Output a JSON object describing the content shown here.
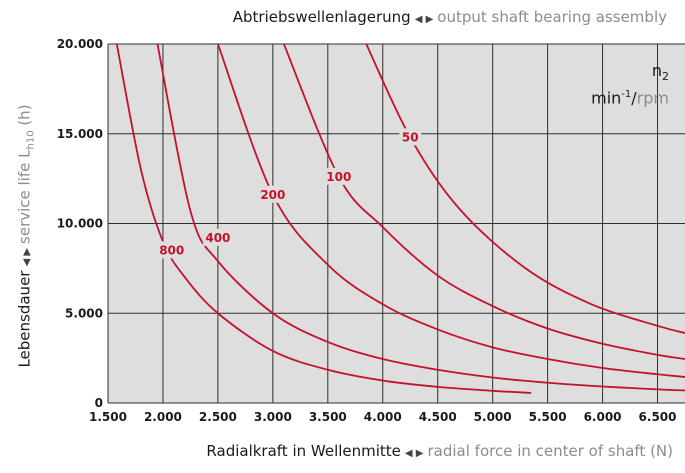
{
  "header": {
    "title_de": "Abtriebswellenlagerung",
    "title_en": "output shaft bearing assembly"
  },
  "axes": {
    "x_de": "Radialkraft in Wellenmitte",
    "x_en": "radial force in center of shaft (N)",
    "y_de": "Lebensdauer",
    "y_en_prefix": "service life L",
    "y_en_sub": "h10",
    "y_en_suffix": " (h)"
  },
  "legend": {
    "symbol": "n",
    "symbol_sub": "2",
    "unit_main": "min",
    "unit_sup": "-1",
    "unit_sep": "/",
    "unit_alt": "rpm"
  },
  "chart_data": {
    "type": "line",
    "xlim": [
      1500,
      6750
    ],
    "ylim": [
      0,
      20000
    ],
    "x_ticks": [
      1500,
      2000,
      2500,
      3000,
      3500,
      4000,
      4500,
      5000,
      5500,
      6000,
      6500
    ],
    "x_tick_labels": [
      "1.500",
      "2.000",
      "2.500",
      "3.000",
      "3.500",
      "4.000",
      "4.500",
      "5.000",
      "5.500",
      "6.000",
      "6.500"
    ],
    "y_ticks": [
      0,
      5000,
      10000,
      15000,
      20000
    ],
    "y_tick_labels": [
      "0",
      "5.000",
      "10.000",
      "15.000",
      "20.000"
    ],
    "grid": true,
    "series": [
      {
        "name": "50",
        "points": [
          [
            3850,
            20000
          ],
          [
            4250,
            14800
          ],
          [
            4700,
            10800
          ],
          [
            5300,
            7500
          ],
          [
            5900,
            5500
          ],
          [
            6500,
            4300
          ],
          [
            6750,
            3900
          ]
        ]
      },
      {
        "name": "100",
        "points": [
          [
            3100,
            20000
          ],
          [
            3600,
            12600
          ],
          [
            4000,
            9800
          ],
          [
            4500,
            7100
          ],
          [
            5000,
            5400
          ],
          [
            5500,
            4150
          ],
          [
            6000,
            3300
          ],
          [
            6500,
            2680
          ],
          [
            6750,
            2450
          ]
        ]
      },
      {
        "name": "200",
        "points": [
          [
            2500,
            20000
          ],
          [
            3000,
            11600
          ],
          [
            3500,
            7700
          ],
          [
            4000,
            5500
          ],
          [
            4500,
            4100
          ],
          [
            5000,
            3100
          ],
          [
            5500,
            2450
          ],
          [
            6000,
            1950
          ],
          [
            6500,
            1600
          ],
          [
            6750,
            1450
          ]
        ]
      },
      {
        "name": "400",
        "points": [
          [
            1950,
            20000
          ],
          [
            2250,
            10700
          ],
          [
            2500,
            7900
          ],
          [
            3000,
            5000
          ],
          [
            3500,
            3400
          ],
          [
            4000,
            2450
          ],
          [
            4500,
            1850
          ],
          [
            5000,
            1420
          ],
          [
            5500,
            1130
          ],
          [
            6000,
            920
          ],
          [
            6500,
            760
          ],
          [
            6750,
            700
          ]
        ]
      },
      {
        "name": "800",
        "points": [
          [
            1580,
            20000
          ],
          [
            1800,
            13000
          ],
          [
            2000,
            9000
          ],
          [
            2200,
            7000
          ],
          [
            2500,
            5000
          ],
          [
            3000,
            2900
          ],
          [
            3500,
            1850
          ],
          [
            4000,
            1250
          ],
          [
            4500,
            900
          ],
          [
            5000,
            680
          ],
          [
            5350,
            560
          ]
        ]
      }
    ]
  },
  "colors": {
    "curve": "#c5112b",
    "grid_bg": "#dedede",
    "grid_line": "#2e2e2e",
    "muted_text": "#8c8c8c"
  }
}
